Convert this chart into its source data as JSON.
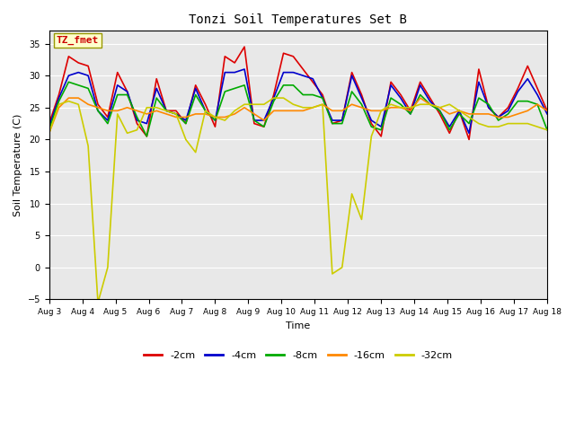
{
  "title": "Tonzi Soil Temperatures Set B",
  "xlabel": "Time",
  "ylabel": "Soil Temperature (C)",
  "ylim": [
    -5,
    37
  ],
  "yticks": [
    -5,
    0,
    5,
    10,
    15,
    20,
    25,
    30,
    35
  ],
  "x_labels": [
    "Aug 3",
    "Aug 4",
    "Aug 5",
    "Aug 6",
    "Aug 7",
    "Aug 8",
    "Aug 9",
    "Aug 10",
    "Aug 11",
    "Aug 12",
    "Aug 13",
    "Aug 14",
    "Aug 15",
    "Aug 16",
    "Aug 17",
    "Aug 18"
  ],
  "annotation_text": "TZ_fmet",
  "annotation_box_facecolor": "#ffffcc",
  "annotation_text_color": "#cc0000",
  "annotation_edge_color": "#999900",
  "fig_facecolor": "#ffffff",
  "plot_facecolor": "#e8e8e8",
  "series_order": [
    "-2cm",
    "-4cm",
    "-8cm",
    "-16cm",
    "-32cm"
  ],
  "series": {
    "-2cm": {
      "color": "#dd0000",
      "lw": 1.2
    },
    "-4cm": {
      "color": "#0000cc",
      "lw": 1.2
    },
    "-8cm": {
      "color": "#00aa00",
      "lw": 1.2
    },
    "-16cm": {
      "color": "#ff8800",
      "lw": 1.2
    },
    "-32cm": {
      "color": "#cccc00",
      "lw": 1.2
    }
  },
  "data": {
    "-2cm": [
      22.5,
      27.0,
      33.0,
      32.0,
      31.5,
      25.5,
      23.5,
      30.5,
      27.5,
      22.5,
      20.5,
      29.5,
      24.5,
      24.5,
      22.5,
      28.5,
      25.5,
      22.0,
      33.0,
      32.0,
      34.5,
      22.5,
      22.0,
      27.0,
      33.5,
      33.0,
      31.0,
      29.0,
      27.0,
      22.5,
      23.0,
      30.5,
      27.0,
      22.5,
      20.5,
      29.0,
      27.0,
      24.5,
      29.0,
      26.5,
      24.0,
      21.0,
      24.5,
      20.0,
      31.0,
      25.0,
      23.5,
      25.0,
      28.0,
      31.5,
      28.0,
      24.5
    ],
    "-4cm": [
      22.0,
      26.5,
      30.0,
      30.5,
      30.0,
      24.5,
      23.0,
      28.5,
      27.5,
      23.0,
      22.5,
      28.0,
      24.5,
      24.0,
      23.0,
      28.0,
      24.5,
      23.0,
      30.5,
      30.5,
      31.0,
      23.0,
      23.0,
      26.5,
      30.5,
      30.5,
      30.0,
      29.5,
      26.5,
      23.0,
      23.0,
      30.0,
      26.5,
      23.0,
      22.0,
      28.5,
      26.5,
      24.0,
      28.5,
      26.0,
      24.5,
      22.0,
      24.5,
      21.0,
      29.0,
      25.0,
      23.5,
      24.5,
      27.5,
      29.5,
      27.0,
      24.0
    ],
    "-8cm": [
      21.5,
      26.0,
      29.0,
      28.5,
      28.0,
      24.5,
      22.5,
      27.0,
      27.0,
      23.5,
      20.5,
      26.5,
      24.5,
      24.0,
      22.5,
      27.0,
      24.5,
      23.0,
      27.5,
      28.0,
      28.5,
      23.0,
      22.0,
      26.0,
      28.5,
      28.5,
      27.0,
      27.0,
      26.5,
      22.5,
      22.5,
      27.5,
      25.5,
      22.0,
      21.5,
      26.5,
      25.5,
      24.0,
      27.0,
      25.5,
      24.5,
      21.5,
      24.0,
      22.5,
      26.5,
      25.5,
      23.0,
      24.0,
      26.0,
      26.0,
      25.5,
      21.5
    ],
    "-16cm": [
      21.0,
      25.0,
      26.5,
      26.5,
      25.5,
      25.0,
      24.5,
      24.5,
      25.0,
      24.5,
      24.0,
      24.5,
      24.0,
      23.5,
      23.5,
      24.0,
      24.0,
      23.5,
      23.5,
      24.0,
      25.0,
      24.0,
      23.0,
      24.5,
      24.5,
      24.5,
      24.5,
      25.0,
      25.5,
      24.5,
      24.5,
      25.5,
      25.0,
      24.5,
      24.5,
      25.0,
      25.0,
      24.5,
      26.5,
      25.5,
      25.0,
      24.0,
      24.5,
      24.0,
      24.0,
      24.0,
      23.5,
      23.5,
      24.0,
      24.5,
      25.5,
      24.5
    ],
    "-32cm": [
      21.0,
      25.5,
      26.0,
      25.5,
      19.0,
      -5.5,
      0.0,
      24.0,
      21.0,
      21.5,
      25.0,
      25.0,
      24.5,
      24.0,
      20.0,
      18.0,
      24.5,
      23.5,
      23.0,
      24.5,
      25.5,
      25.5,
      25.5,
      26.5,
      26.5,
      25.5,
      25.0,
      25.0,
      25.5,
      -1.0,
      0.0,
      11.5,
      7.5,
      20.5,
      24.5,
      25.5,
      25.0,
      25.0,
      25.5,
      25.5,
      25.0,
      25.5,
      24.5,
      23.5,
      22.5,
      22.0,
      22.0,
      22.5,
      22.5,
      22.5,
      22.0,
      21.5
    ]
  }
}
